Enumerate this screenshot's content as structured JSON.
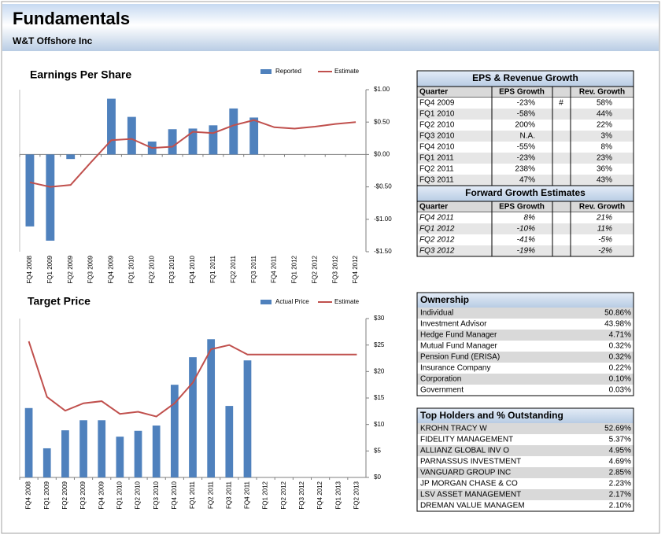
{
  "header": {
    "title": "Fundamentals",
    "subtitle": "W&T Offshore Inc"
  },
  "chart_data": [
    {
      "type": "bar",
      "title": "Earnings Per Share",
      "categories": [
        "FQ4 2008",
        "FQ1 2009",
        "FQ2 2009",
        "FQ3 2009",
        "FQ4 2009",
        "FQ1 2010",
        "FQ2 2010",
        "FQ3 2010",
        "FQ4 2010",
        "FQ1 2011",
        "FQ2 2011",
        "FQ3 2011",
        "FQ4 2011",
        "FQ1 2012",
        "FQ2 2012",
        "FQ3 2012",
        "FQ4 2012"
      ],
      "series": [
        {
          "name": "Reported",
          "type": "bar",
          "color": "#4f81bd",
          "values": [
            -1.11,
            -1.33,
            -0.07,
            null,
            0.86,
            0.58,
            0.2,
            0.39,
            0.4,
            0.45,
            0.71,
            0.57,
            null,
            null,
            null,
            null,
            null
          ]
        },
        {
          "name": "Estimate",
          "type": "line",
          "color": "#c0504d",
          "values": [
            -0.43,
            -0.5,
            -0.47,
            -0.12,
            0.22,
            0.24,
            0.1,
            0.12,
            0.35,
            0.33,
            0.45,
            0.53,
            0.42,
            0.4,
            0.43,
            0.47,
            0.5
          ]
        }
      ],
      "ylim": [
        -1.5,
        1
      ],
      "yticks": [
        {
          "value": 1,
          "label": "$1.00"
        },
        {
          "value": 0.5,
          "label": "$0.50"
        },
        {
          "value": 0,
          "label": "$0.00"
        },
        {
          "value": -0.5,
          "label": "-$0.50"
        },
        {
          "value": -1,
          "label": "-$1.00"
        },
        {
          "value": -1.5,
          "label": "-$1.50"
        }
      ]
    },
    {
      "type": "bar",
      "title": "Target Price",
      "categories": [
        "FQ4 2008",
        "FQ1 2009",
        "FQ2 2009",
        "FQ3 2009",
        "FQ4 2009",
        "FQ1 2010",
        "FQ2 2010",
        "FQ3 2010",
        "FQ4 2010",
        "FQ1 2011",
        "FQ2 2011",
        "FQ3 2011",
        "FQ4 2011",
        "FQ1 2012",
        "FQ2 2012",
        "FQ3 2012",
        "FQ4 2012",
        "FQ1 2013",
        "FQ2 2013"
      ],
      "series": [
        {
          "name": "Actual Price",
          "type": "bar",
          "color": "#4f81bd",
          "values": [
            13.1,
            5.5,
            8.9,
            10.8,
            10.8,
            7.7,
            8.8,
            9.8,
            17.5,
            22.7,
            26.1,
            13.5,
            22.1,
            null,
            null,
            null,
            null,
            null,
            null
          ]
        },
        {
          "name": "Estimate",
          "type": "line",
          "color": "#c0504d",
          "values": [
            25.7,
            15.2,
            12.6,
            14,
            14.4,
            12,
            12.4,
            11.5,
            14,
            17.9,
            24.2,
            25,
            23.2,
            23.2,
            23.2,
            23.2,
            23.2,
            23.2,
            23.2
          ]
        }
      ],
      "ylim": [
        0,
        30
      ],
      "yticks": [
        {
          "value": 30,
          "label": "$30"
        },
        {
          "value": 25,
          "label": "$25"
        },
        {
          "value": 20,
          "label": "$20"
        },
        {
          "value": 15,
          "label": "$15"
        },
        {
          "value": 10,
          "label": "$10"
        },
        {
          "value": 5,
          "label": "$5"
        },
        {
          "value": 0,
          "label": "$0"
        }
      ]
    }
  ],
  "eps_growth": {
    "title": "EPS & Revenue Growth",
    "columns": [
      "Quarter",
      "EPS Growth",
      "Rev. Growth"
    ],
    "rows": [
      {
        "quarter": "FQ4 2009",
        "eps": "-23%",
        "flag": "#",
        "rev": "58%"
      },
      {
        "quarter": "FQ1 2010",
        "eps": "-58%",
        "rev": "44%"
      },
      {
        "quarter": "FQ2 2010",
        "eps": "200%",
        "rev": "22%"
      },
      {
        "quarter": "FQ3 2010",
        "eps": "N.A.",
        "rev": "3%"
      },
      {
        "quarter": "FQ4 2010",
        "eps": "-55%",
        "rev": "8%"
      },
      {
        "quarter": "FQ1 2011",
        "eps": "-23%",
        "rev": "23%"
      },
      {
        "quarter": "FQ2 2011",
        "eps": "238%",
        "rev": "36%"
      },
      {
        "quarter": "FQ3 2011",
        "eps": "47%",
        "rev": "43%"
      }
    ]
  },
  "forward_growth": {
    "title": "Forward Growth Estimates",
    "columns": [
      "Quarter",
      "EPS Growth",
      "Rev. Growth"
    ],
    "rows": [
      {
        "quarter": "FQ4 2011",
        "eps": "8%",
        "rev": "21%"
      },
      {
        "quarter": "FQ1 2012",
        "eps": "-10%",
        "rev": "11%"
      },
      {
        "quarter": "FQ2 2012",
        "eps": "-41%",
        "rev": "-5%"
      },
      {
        "quarter": "FQ3 2012",
        "eps": "-19%",
        "rev": "-2%"
      }
    ]
  },
  "ownership": {
    "title": "Ownership",
    "rows": [
      {
        "label": "Individual",
        "value": "50.86%"
      },
      {
        "label": "Investment Advisor",
        "value": "43.98%"
      },
      {
        "label": "Hedge Fund Manager",
        "value": "4.71%"
      },
      {
        "label": "Mutual Fund Manager",
        "value": "0.32%"
      },
      {
        "label": "Pension Fund (ERISA)",
        "value": "0.32%"
      },
      {
        "label": "Insurance Company",
        "value": "0.22%"
      },
      {
        "label": "Corporation",
        "value": "0.10%"
      },
      {
        "label": "Government",
        "value": "0.03%"
      }
    ]
  },
  "holders": {
    "title": "Top Holders and % Outstanding",
    "rows": [
      {
        "label": "KROHN TRACY W",
        "value": "52.69%"
      },
      {
        "label": "FIDELITY MANAGEMENT",
        "value": "5.37%"
      },
      {
        "label": "ALLIANZ GLOBAL INV O",
        "value": "4.95%"
      },
      {
        "label": "PARNASSUS INVESTMENT",
        "value": "4.69%"
      },
      {
        "label": "VANGUARD GROUP INC",
        "value": "2.85%"
      },
      {
        "label": "JP MORGAN CHASE & CO",
        "value": "2.23%"
      },
      {
        "label": "LSV ASSET MANAGEMENT",
        "value": "2.17%"
      },
      {
        "label": "DREMAN VALUE MANAGEM",
        "value": "2.10%"
      }
    ]
  }
}
